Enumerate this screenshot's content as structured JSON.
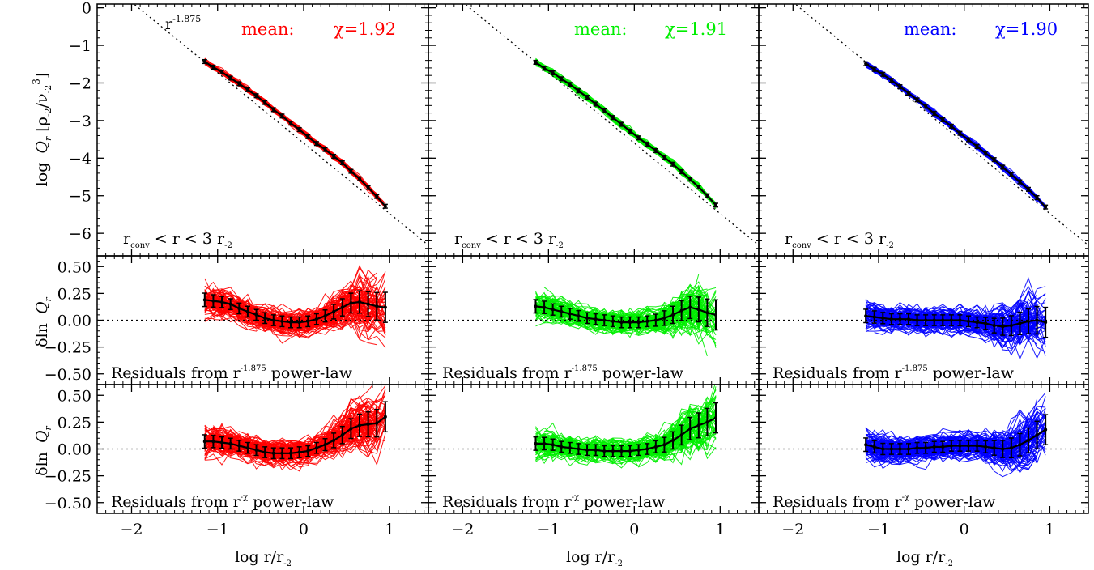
{
  "colors": {
    "red": "#ff0000",
    "green": "#00ee00",
    "blue": "#0000ff",
    "mean_curve": "#000000"
  },
  "axes": {
    "xlabel_prefix": "log r/r",
    "xlabel_sub": "-2",
    "top_ylabel_prefix": "log",
    "top_ylabel_Q": "Q",
    "top_ylabel_Q_sub": "r",
    "top_ylabel_unit": "[ρ",
    "top_ylabel_unit_sub": "-2",
    "top_ylabel_unit_mid": "/ν",
    "top_ylabel_unit_sub2": "-2",
    "top_ylabel_unit_sup": "3",
    "top_ylabel_unit_end": "]",
    "resid_ylabel_prefix": "δln",
    "resid_ylabel_Q": "Q",
    "resid_ylabel_sub": "r"
  },
  "annotations": {
    "powerlaw_base": "r",
    "powerlaw_exp": "-1.875",
    "range_r": "r",
    "range_sub": "conv",
    "range_rest": " < r < 3 r",
    "range_sub2": "-2",
    "mean_label": "mean:",
    "resid_text1_prefix": "Residuals from r",
    "resid_text1_exp": "-1.875",
    "resid_text1_suffix": " power-law",
    "resid_text2_prefix": "Residuals from r",
    "resid_text2_exp": "-χ",
    "resid_text2_suffix": " power-law"
  },
  "chart_data": [
    {
      "type": "line",
      "row": "profile",
      "columns": [
        {
          "color": "red",
          "chi_text": "χ=1.92"
        },
        {
          "color": "green",
          "chi_text": "χ=1.91"
        },
        {
          "color": "blue",
          "chi_text": "χ=1.90"
        }
      ],
      "xlim": [
        -2.4,
        1.45
      ],
      "ylim": [
        -6.6,
        0.1
      ],
      "xticks": [
        -2,
        -1,
        0,
        1
      ],
      "xtick_labels": [
        "−2",
        "−1",
        "0",
        "1"
      ],
      "yticks": [
        0,
        -1,
        -2,
        -3,
        -4,
        -5,
        -6
      ],
      "ytick_labels": [
        "0",
        "−1",
        "−2",
        "−3",
        "−4",
        "−5",
        "−6"
      ],
      "reference_line": {
        "slope": -1.875,
        "intercept": -3.6,
        "style": "dotted"
      },
      "mean_curve": {
        "x": [
          -1.15,
          -1.05,
          -0.95,
          -0.85,
          -0.75,
          -0.65,
          -0.55,
          -0.45,
          -0.35,
          -0.25,
          -0.15,
          -0.05,
          0.05,
          0.15,
          0.25,
          0.35,
          0.45,
          0.55,
          0.65,
          0.75,
          0.85,
          0.95
        ],
        "y_by_column": [
          [
            -1.43,
            -1.58,
            -1.71,
            -1.87,
            -2.02,
            -2.18,
            -2.34,
            -2.52,
            -2.71,
            -2.88,
            -3.07,
            -3.24,
            -3.43,
            -3.61,
            -3.77,
            -3.95,
            -4.12,
            -4.35,
            -4.55,
            -4.78,
            -5.02,
            -5.28
          ],
          [
            -1.45,
            -1.61,
            -1.73,
            -1.89,
            -2.04,
            -2.21,
            -2.38,
            -2.56,
            -2.74,
            -2.92,
            -3.1,
            -3.28,
            -3.46,
            -3.63,
            -3.8,
            -3.98,
            -4.16,
            -4.36,
            -4.56,
            -4.77,
            -5.0,
            -5.25
          ],
          [
            -1.49,
            -1.64,
            -1.77,
            -1.93,
            -2.1,
            -2.27,
            -2.45,
            -2.62,
            -2.81,
            -2.98,
            -3.15,
            -3.34,
            -3.51,
            -3.69,
            -3.87,
            -4.04,
            -4.24,
            -4.44,
            -4.63,
            -4.83,
            -5.05,
            -5.3
          ]
        ]
      }
    },
    {
      "type": "line",
      "row": "residual_fixed_slope",
      "xlim": [
        -2.4,
        1.45
      ],
      "ylim": [
        -0.6,
        0.6
      ],
      "yticks": [
        0.5,
        0.25,
        0.0,
        -0.25,
        -0.5
      ],
      "ytick_labels": [
        "0.50",
        "0.25",
        "0.00",
        "−0.25",
        "−0.50"
      ],
      "reference_line": {
        "y": 0.0,
        "style": "dotted"
      },
      "mean_curve": {
        "x": [
          -1.15,
          -1.05,
          -0.95,
          -0.85,
          -0.75,
          -0.65,
          -0.55,
          -0.45,
          -0.35,
          -0.25,
          -0.15,
          -0.05,
          0.05,
          0.15,
          0.25,
          0.35,
          0.45,
          0.55,
          0.65,
          0.75,
          0.85,
          0.95
        ],
        "y_by_column": [
          [
            0.19,
            0.18,
            0.17,
            0.15,
            0.11,
            0.08,
            0.05,
            0.02,
            0.0,
            -0.01,
            -0.02,
            -0.02,
            -0.01,
            0.01,
            0.04,
            0.08,
            0.12,
            0.16,
            0.17,
            0.15,
            0.13,
            0.12
          ],
          [
            0.13,
            0.12,
            0.1,
            0.08,
            0.06,
            0.04,
            0.02,
            0.01,
            0.0,
            -0.01,
            -0.02,
            -0.02,
            -0.02,
            -0.01,
            0.0,
            0.02,
            0.05,
            0.09,
            0.12,
            0.1,
            0.07,
            0.05
          ],
          [
            0.04,
            0.03,
            0.02,
            0.01,
            0.01,
            0.01,
            0.0,
            0.0,
            0.0,
            0.0,
            0.0,
            0.0,
            -0.01,
            -0.02,
            -0.03,
            -0.05,
            -0.06,
            -0.05,
            -0.03,
            -0.01,
            0.0,
            -0.02
          ]
        ]
      }
    },
    {
      "type": "line",
      "row": "residual_fitted_slope",
      "xlim": [
        -2.4,
        1.45
      ],
      "ylim": [
        -0.6,
        0.6
      ],
      "yticks": [
        0.5,
        0.25,
        0.0,
        -0.25,
        -0.5
      ],
      "ytick_labels": [
        "0.50",
        "0.25",
        "0.00",
        "−0.25",
        "−0.50"
      ],
      "reference_line": {
        "y": 0.0,
        "style": "dotted"
      },
      "mean_curve": {
        "x": [
          -1.15,
          -1.05,
          -0.95,
          -0.85,
          -0.75,
          -0.65,
          -0.55,
          -0.45,
          -0.35,
          -0.25,
          -0.15,
          -0.05,
          0.05,
          0.15,
          0.25,
          0.35,
          0.45,
          0.55,
          0.65,
          0.75,
          0.85,
          0.95
        ],
        "y_by_column": [
          [
            0.07,
            0.07,
            0.06,
            0.05,
            0.03,
            0.01,
            -0.01,
            -0.03,
            -0.04,
            -0.04,
            -0.04,
            -0.03,
            -0.02,
            0.01,
            0.04,
            0.08,
            0.13,
            0.19,
            0.22,
            0.23,
            0.24,
            0.3
          ],
          [
            0.05,
            0.05,
            0.04,
            0.02,
            0.01,
            0.0,
            -0.01,
            -0.01,
            -0.02,
            -0.02,
            -0.02,
            -0.02,
            -0.01,
            0.0,
            0.02,
            0.04,
            0.08,
            0.13,
            0.19,
            0.22,
            0.25,
            0.29
          ],
          [
            0.04,
            0.02,
            0.0,
            0.0,
            0.0,
            0.0,
            0.01,
            0.01,
            0.02,
            0.02,
            0.03,
            0.03,
            0.03,
            0.03,
            0.02,
            0.01,
            0.0,
            0.01,
            0.04,
            0.08,
            0.13,
            0.18
          ]
        ]
      }
    }
  ]
}
